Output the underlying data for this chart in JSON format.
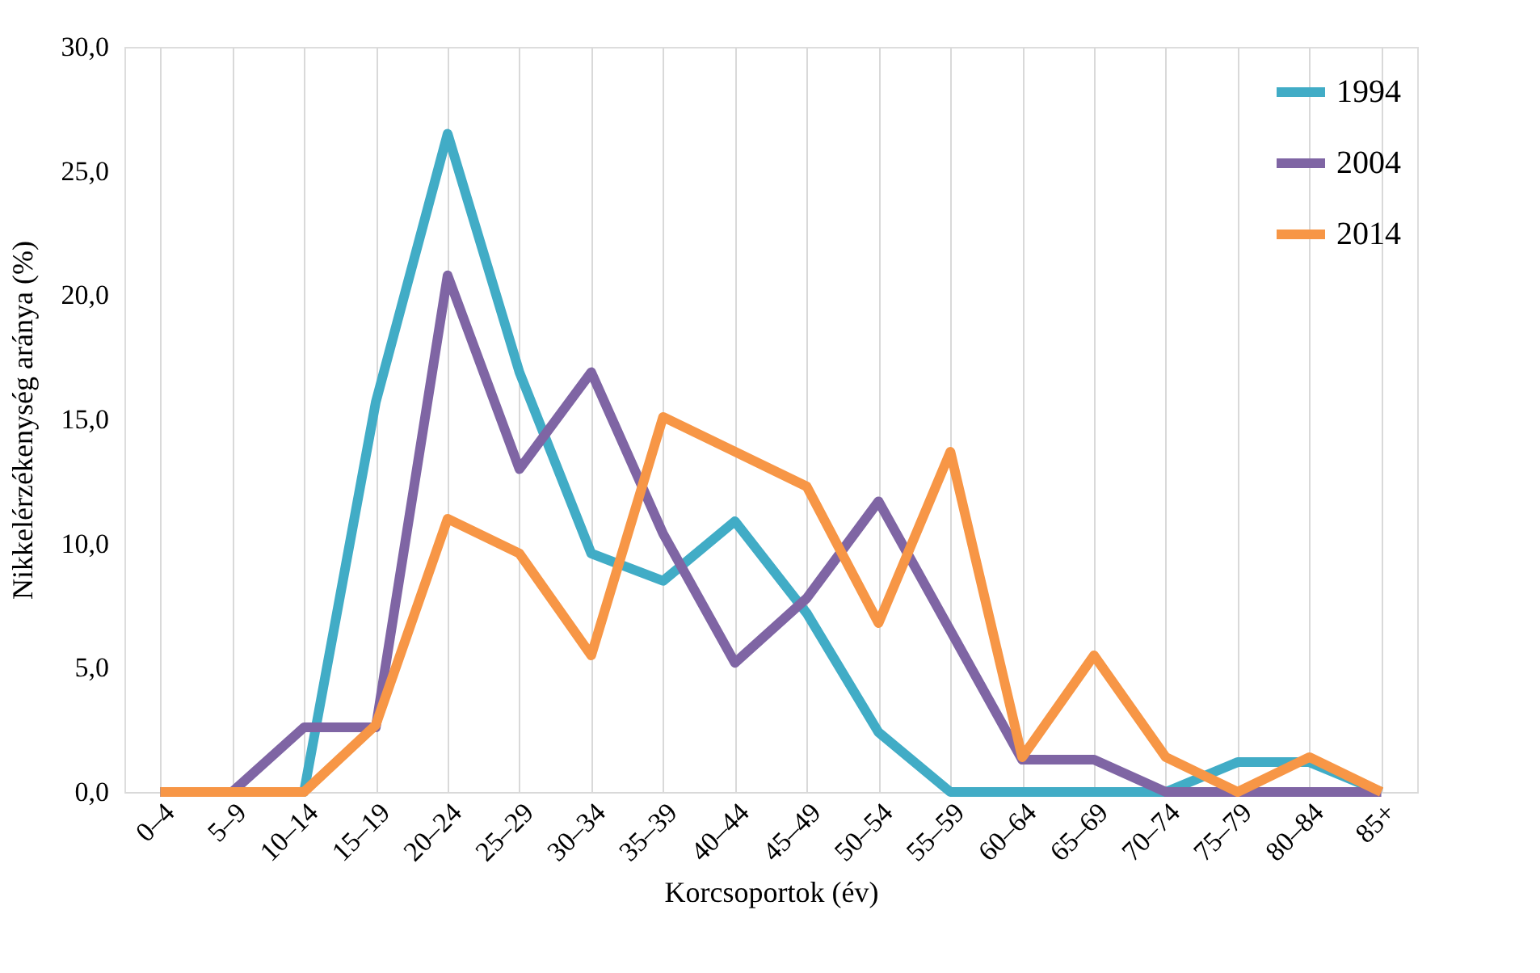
{
  "chart_data": {
    "type": "line",
    "xlabel": "Korcsoportok (év)",
    "ylabel": "Nikkelérzékenység aránya (%)",
    "categories": [
      "0–4",
      "5–9",
      "10–14",
      "15–19",
      "20–24",
      "25–29",
      "30–34",
      "35–39",
      "40–44",
      "45–49",
      "50–54",
      "55–59",
      "60–64",
      "65–69",
      "70–74",
      "75–79",
      "80–84",
      "85+"
    ],
    "series": [
      {
        "name": "1994",
        "color": "#41acc6",
        "values": [
          0,
          0,
          0,
          15.7,
          26.5,
          16.9,
          9.6,
          8.5,
          10.9,
          7.2,
          2.4,
          0,
          0,
          0,
          0,
          1.2,
          1.2,
          0
        ]
      },
      {
        "name": "2004",
        "color": "#7f65a4",
        "values": [
          0,
          0,
          2.6,
          2.6,
          20.8,
          13.0,
          16.9,
          10.4,
          5.2,
          7.8,
          11.7,
          6.5,
          1.3,
          1.3,
          0,
          0,
          0,
          0
        ]
      },
      {
        "name": "2014",
        "color": "#f79646",
        "values": [
          0,
          0,
          0,
          2.7,
          11.0,
          9.6,
          5.5,
          15.1,
          13.7,
          12.3,
          6.8,
          13.7,
          1.4,
          5.5,
          1.4,
          0,
          1.4,
          0
        ]
      }
    ],
    "ylim": [
      0,
      30
    ],
    "yticks": [
      {
        "value": 0,
        "label": "0,0"
      },
      {
        "value": 5,
        "label": "5,0"
      },
      {
        "value": 10,
        "label": "10,0"
      },
      {
        "value": 15,
        "label": "15,0"
      },
      {
        "value": 20,
        "label": "20,0"
      },
      {
        "value": 25,
        "label": "25,0"
      },
      {
        "value": 30,
        "label": "30,0"
      }
    ],
    "grid": "x",
    "legend": "top right",
    "marker": "none",
    "line_style": "solid"
  }
}
